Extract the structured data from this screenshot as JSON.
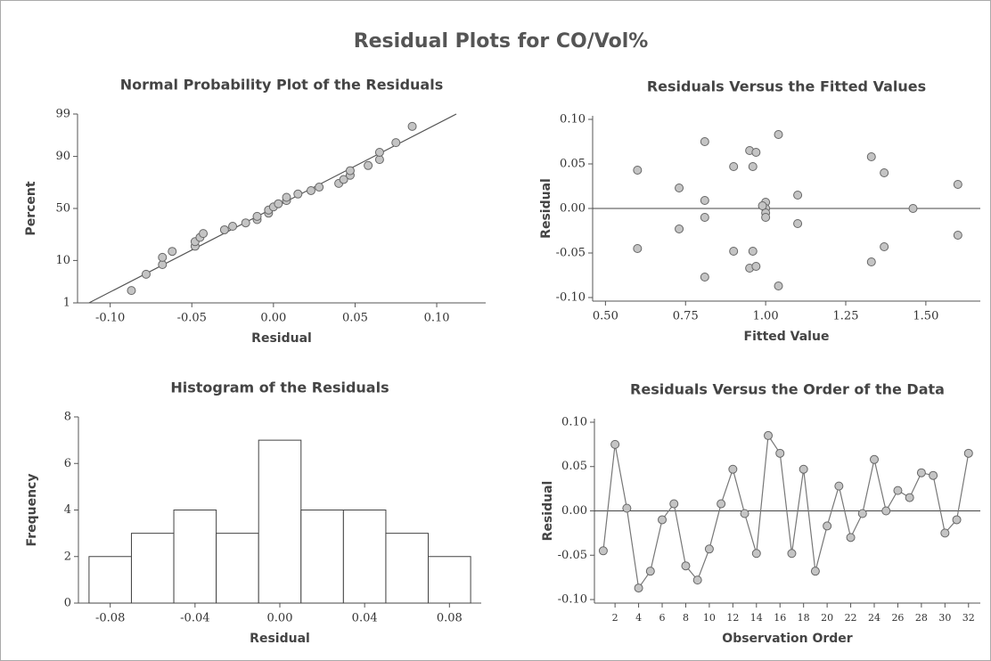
{
  "title": "Residual Plots for CO/Vol%",
  "chart_data": [
    {
      "type": "scatter",
      "title": "Normal Probability Plot of the Residuals",
      "x_label": "Residual",
      "y_label": "Percent",
      "yscale": "probability",
      "x": [
        -0.087,
        -0.078,
        -0.068,
        -0.068,
        -0.062,
        -0.048,
        -0.048,
        -0.045,
        -0.043,
        -0.03,
        -0.025,
        -0.017,
        -0.01,
        -0.01,
        -0.003,
        -0.003,
        0.0,
        0.003,
        0.008,
        0.008,
        0.015,
        0.023,
        0.028,
        0.04,
        0.043,
        0.047,
        0.047,
        0.058,
        0.065,
        0.065,
        0.075,
        0.085
      ],
      "values": [
        2.16,
        5.25,
        8.33,
        11.42,
        14.51,
        17.59,
        20.68,
        23.77,
        26.85,
        29.94,
        33.02,
        36.11,
        39.2,
        42.28,
        45.37,
        48.46,
        51.54,
        54.63,
        57.72,
        60.8,
        63.89,
        66.98,
        70.06,
        73.15,
        76.23,
        79.32,
        82.41,
        85.49,
        88.58,
        91.67,
        94.75,
        97.84
      ],
      "fit_line": {
        "x": [
          -0.113,
          0.112
        ],
        "values": [
          1,
          99
        ]
      },
      "xlim": [
        -0.12,
        0.13
      ],
      "xticks": [
        {
          "value": -0.1,
          "label": "-0.10"
        },
        -0.05,
        {
          "value": 0,
          "label": "0.00"
        },
        0.05,
        {
          "value": 0.1,
          "label": "0.10"
        }
      ],
      "ylim": [
        1,
        99
      ],
      "yticks": [
        1,
        10,
        50,
        90,
        99
      ]
    },
    {
      "type": "scatter",
      "title": "Residuals Versus the Fitted Values",
      "x_label": "Fitted Value",
      "y_label": "Residual",
      "x": [
        0.6,
        0.6,
        0.73,
        0.73,
        0.81,
        0.81,
        0.81,
        0.81,
        0.9,
        0.9,
        0.95,
        0.96,
        0.97,
        0.96,
        0.95,
        0.97,
        1.0,
        1.0,
        1.0,
        1.0,
        1.04,
        1.04,
        1.1,
        1.1,
        1.33,
        1.33,
        1.37,
        1.37,
        1.46,
        1.6,
        1.6,
        0.99
      ],
      "values": [
        0.043,
        -0.045,
        0.023,
        -0.023,
        0.075,
        0.009,
        -0.01,
        -0.077,
        0.047,
        -0.048,
        0.065,
        0.047,
        0.063,
        -0.048,
        -0.067,
        -0.065,
        0.007,
        0.0,
        -0.005,
        -0.01,
        0.083,
        -0.087,
        0.015,
        -0.017,
        0.058,
        -0.06,
        0.04,
        -0.043,
        0.0,
        0.027,
        -0.03,
        0.003
      ],
      "reference_line": 0,
      "xlim": [
        0.46,
        1.67
      ],
      "xticks": [
        {
          "value": 0.5,
          "label": "0.50"
        },
        0.75,
        {
          "value": 1,
          "label": "1.00"
        },
        1.25,
        {
          "value": 1.5,
          "label": "1.50"
        }
      ],
      "ylim": [
        -0.104,
        0.104
      ],
      "yticks": [
        {
          "value": -0.1,
          "label": "-0.10"
        },
        -0.05,
        {
          "value": 0,
          "label": "0.00"
        },
        0.05,
        {
          "value": 0.1,
          "label": "0.10"
        }
      ]
    },
    {
      "type": "histogram",
      "title": "Histogram of the Residuals",
      "x_label": "Residual",
      "y_label": "Frequency",
      "bins": [
        -0.09,
        -0.07,
        -0.05,
        -0.03,
        -0.01,
        0.01,
        0.03,
        0.05,
        0.07,
        0.09
      ],
      "values": [
        2,
        3,
        4,
        3,
        7,
        4,
        4,
        3,
        2
      ],
      "xlim": [
        -0.095,
        0.095
      ],
      "xticks": [
        {
          "value": -0.08,
          "label": "-0.08"
        },
        {
          "value": -0.04,
          "label": "-0.04"
        },
        {
          "value": 0,
          "label": "0.00"
        },
        0.04,
        0.08
      ],
      "ylim": [
        0,
        8
      ],
      "yticks": [
        0,
        2,
        4,
        6,
        8
      ]
    },
    {
      "type": "line",
      "title": "Residuals Versus the Order of the Data",
      "x_label": "Observation Order",
      "y_label": "Residual",
      "x": [
        1,
        2,
        3,
        4,
        5,
        6,
        7,
        8,
        9,
        10,
        11,
        12,
        13,
        14,
        15,
        16,
        17,
        18,
        19,
        20,
        21,
        22,
        23,
        24,
        25,
        26,
        27,
        28,
        29,
        30,
        31,
        32
      ],
      "values": [
        -0.045,
        0.075,
        0.003,
        -0.087,
        -0.068,
        -0.01,
        0.008,
        -0.062,
        -0.078,
        -0.043,
        0.008,
        0.047,
        -0.003,
        -0.048,
        0.085,
        0.065,
        -0.048,
        0.047,
        -0.068,
        -0.017,
        0.028,
        -0.03,
        -0.003,
        0.058,
        0.0,
        0.023,
        0.015,
        0.043,
        0.04,
        -0.025,
        -0.01,
        0.065
      ],
      "reference_line": 0,
      "xlim": [
        0.25,
        33
      ],
      "xticks": [
        2,
        4,
        6,
        8,
        10,
        12,
        14,
        16,
        18,
        20,
        22,
        24,
        26,
        28,
        30,
        32
      ],
      "ylim": [
        -0.104,
        0.104
      ],
      "yticks": [
        {
          "value": -0.1,
          "label": "-0.10"
        },
        -0.05,
        {
          "value": 0,
          "label": "0.00"
        },
        0.05,
        {
          "value": 0.1,
          "label": "0.10"
        }
      ]
    }
  ]
}
